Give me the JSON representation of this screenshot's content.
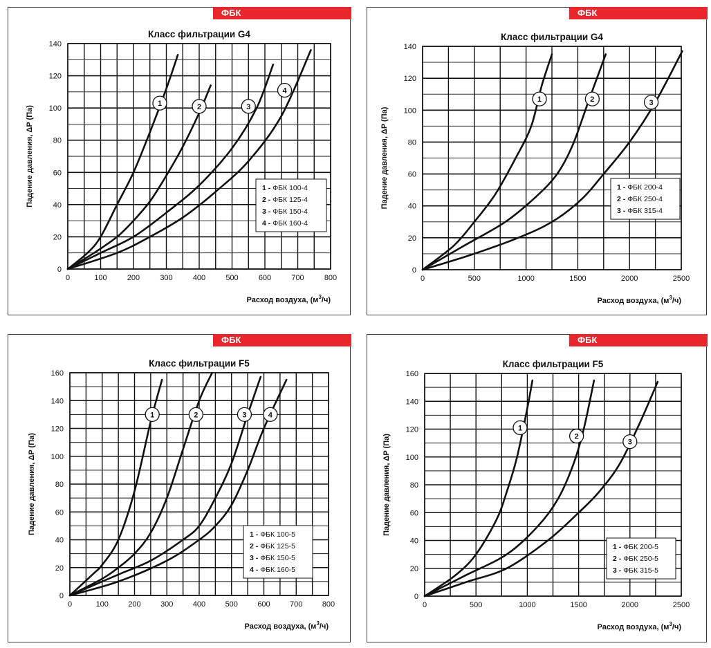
{
  "panels": [
    {
      "tag": "ФБК",
      "chart_data": {
        "type": "line",
        "title": "Класс фильтрации G4",
        "ylabel": "Падение давления, ΔP (Па)",
        "xlabel_main": "Расход воздуха, (м",
        "xlabel_sup": "3",
        "xlabel_end": "/ч)",
        "xlim": [
          0,
          800
        ],
        "ylim": [
          0,
          140
        ],
        "x_ticks": [
          0,
          100,
          200,
          300,
          400,
          500,
          600,
          700,
          800
        ],
        "y_ticks": [
          0,
          20,
          40,
          60,
          80,
          100,
          120,
          140
        ],
        "grid": true,
        "legend": [
          {
            "num": "1",
            "text": "ФБК 100-4"
          },
          {
            "num": "2",
            "text": "ФБК 125-4"
          },
          {
            "num": "3",
            "text": "ФБК 150-4"
          },
          {
            "num": "4",
            "text": "ФБК 160-4"
          }
        ],
        "series": [
          {
            "label": "1",
            "x": [
              0,
              60,
              100,
              150,
              200,
              250,
              300,
              335
            ],
            "y": [
              0,
              10,
              20,
              40,
              60,
              85,
              112,
              133
            ],
            "marker": [
              280,
              103
            ]
          },
          {
            "label": "2",
            "x": [
              0,
              80,
              150,
              200,
              250,
              300,
              350,
              400,
              435
            ],
            "y": [
              0,
              10,
              20,
              30,
              42,
              58,
              76,
              97,
              114
            ],
            "marker": [
              400,
              101
            ]
          },
          {
            "label": "3",
            "x": [
              0,
              100,
              200,
              300,
              400,
              500,
              575,
              625
            ],
            "y": [
              0,
              10,
              20,
              35,
              52,
              75,
              100,
              127
            ],
            "marker": [
              550,
              101
            ]
          },
          {
            "label": "4",
            "x": [
              0,
              150,
              250,
              350,
              450,
              550,
              650,
              740
            ],
            "y": [
              0,
              10,
              20,
              32,
              48,
              67,
              95,
              136
            ],
            "marker": [
              660,
              111
            ]
          }
        ]
      }
    },
    {
      "tag": "ФБК",
      "chart_data": {
        "type": "line",
        "title": "Класс фильтрации G4",
        "ylabel": "Падение давления, ΔP (Па)",
        "xlabel_main": "Расход воздуха, (м",
        "xlabel_sup": "3",
        "xlabel_end": "/ч)",
        "xlim": [
          0,
          2500
        ],
        "ylim": [
          0,
          140
        ],
        "x_ticks": [
          0,
          500,
          1000,
          1500,
          2000,
          2500
        ],
        "y_ticks": [
          0,
          20,
          40,
          60,
          80,
          100,
          120,
          140
        ],
        "grid": true,
        "legend": [
          {
            "num": "1",
            "text": "ФБК 200-4"
          },
          {
            "num": "2",
            "text": "ФБК 250-4"
          },
          {
            "num": "3",
            "text": "ФБК 315-4"
          }
        ],
        "series": [
          {
            "label": "1",
            "x": [
              0,
              300,
              500,
              700,
              900,
              1050,
              1150,
              1250
            ],
            "y": [
              0,
              15,
              30,
              47,
              70,
              90,
              115,
              135
            ],
            "marker": [
              1130,
              107
            ]
          },
          {
            "label": "2",
            "x": [
              0,
              400,
              800,
              1100,
              1300,
              1450,
              1600,
              1770
            ],
            "y": [
              0,
              15,
              30,
              46,
              60,
              78,
              105,
              135
            ],
            "marker": [
              1640,
              107
            ]
          },
          {
            "label": "3",
            "x": [
              0,
              500,
              1000,
              1300,
              1550,
              1750,
              2000,
              2250,
              2510
            ],
            "y": [
              0,
              10,
              22,
              32,
              45,
              60,
              80,
              105,
              137
            ],
            "marker": [
              2210,
              105
            ]
          }
        ]
      }
    },
    {
      "tag": "ФБК",
      "chart_data": {
        "type": "line",
        "title": "Класс фильтрации F5",
        "ylabel": "Падение давления, ΔP (Па)",
        "xlabel_main": "Расход воздуха, (м",
        "xlabel_sup": "3",
        "xlabel_end": "/ч)",
        "xlim": [
          0,
          800
        ],
        "ylim": [
          0,
          160
        ],
        "x_ticks": [
          0,
          100,
          200,
          300,
          400,
          500,
          600,
          700,
          800
        ],
        "y_ticks": [
          0,
          20,
          40,
          60,
          80,
          100,
          120,
          140,
          160
        ],
        "grid": true,
        "legend": [
          {
            "num": "1",
            "text": "ФБК 100-5"
          },
          {
            "num": "2",
            "text": "ФБК 125-5"
          },
          {
            "num": "3",
            "text": "ФБК 150-5"
          },
          {
            "num": "4",
            "text": "ФБК 160-5"
          }
        ],
        "series": [
          {
            "label": "1",
            "x": [
              0,
              70,
              100,
              150,
              200,
              250,
              285
            ],
            "y": [
              0,
              15,
              22,
              40,
              75,
              125,
              155
            ],
            "marker": [
              255,
              130
            ]
          },
          {
            "label": "2",
            "x": [
              0,
              100,
              150,
              200,
              250,
              300,
              350,
              400,
              440
            ],
            "y": [
              0,
              12,
              20,
              30,
              45,
              70,
              105,
              140,
              160
            ],
            "marker": [
              390,
              130
            ]
          },
          {
            "label": "3",
            "x": [
              0,
              150,
              250,
              350,
              400,
              450,
              500,
              550,
              590
            ],
            "y": [
              0,
              15,
              25,
              40,
              50,
              70,
              95,
              130,
              157
            ],
            "marker": [
              540,
              130
            ]
          },
          {
            "label": "4",
            "x": [
              0,
              150,
              300,
              400,
              450,
              500,
              550,
              600,
              670
            ],
            "y": [
              0,
              10,
              25,
              40,
              50,
              65,
              90,
              120,
              155
            ],
            "marker": [
              620,
              130
            ]
          }
        ]
      }
    },
    {
      "tag": "ФБК",
      "chart_data": {
        "type": "line",
        "title": "Класс фильтрации F5",
        "ylabel": "Падение давления, ΔP (Па)",
        "xlabel_main": "Расход воздуха, (м",
        "xlabel_sup": "3",
        "xlabel_end": "/ч)",
        "xlim": [
          0,
          2500
        ],
        "ylim": [
          0,
          160
        ],
        "x_ticks": [
          0,
          500,
          1000,
          1500,
          2000,
          2500
        ],
        "y_ticks": [
          0,
          20,
          40,
          60,
          80,
          100,
          120,
          140,
          160
        ],
        "grid": true,
        "legend": [
          {
            "num": "1",
            "text": "ФБК 200-5"
          },
          {
            "num": "2",
            "text": "ФБК 250-5"
          },
          {
            "num": "3",
            "text": "ФБК 315-5"
          }
        ],
        "series": [
          {
            "label": "1",
            "x": [
              0,
              300,
              500,
              700,
              800,
              900,
              1000,
              1050
            ],
            "y": [
              0,
              15,
              30,
              55,
              75,
              100,
              135,
              155
            ],
            "marker": [
              930,
              121
            ]
          },
          {
            "label": "2",
            "x": [
              0,
              400,
              800,
              1100,
              1300,
              1450,
              1550,
              1650
            ],
            "y": [
              0,
              15,
              30,
              50,
              70,
              95,
              120,
              155
            ],
            "marker": [
              1480,
              115
            ]
          },
          {
            "label": "3",
            "x": [
              0,
              400,
              800,
              1200,
              1500,
              1700,
              1900,
              2100,
              2270
            ],
            "y": [
              0,
              10,
              20,
              40,
              60,
              75,
              95,
              125,
              154
            ],
            "marker": [
              2000,
              111
            ]
          }
        ]
      }
    }
  ]
}
